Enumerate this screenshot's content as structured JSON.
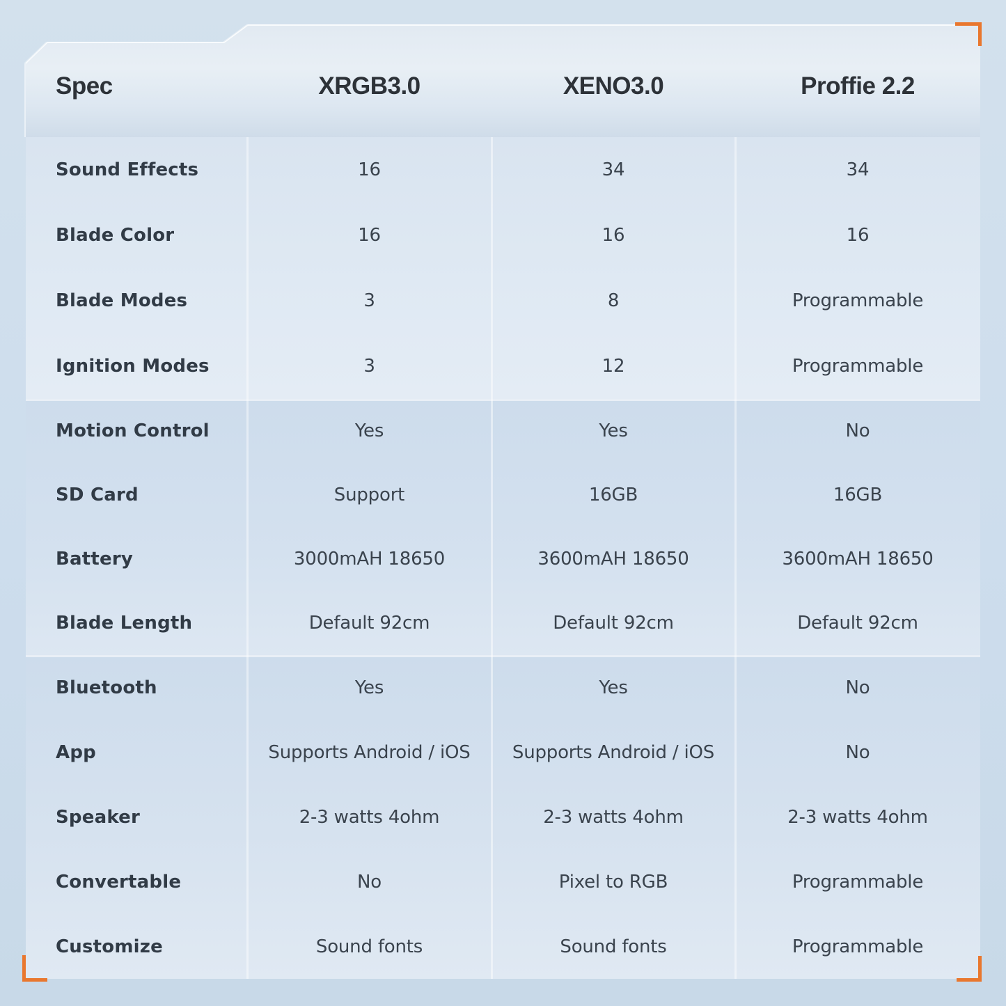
{
  "colors": {
    "accent_orange": "#E9772E",
    "header_text": "#2D3238",
    "body_text": "#3A434D",
    "background": "#CDDDED"
  },
  "chart_data": {
    "type": "table",
    "columns": [
      "Spec",
      "XRGB3.0",
      "XENO3.0",
      "Proffie 2.2"
    ],
    "rows": [
      {
        "label": "Sound Effects",
        "values": [
          "16",
          "34",
          "34"
        ]
      },
      {
        "label": "Blade Color",
        "values": [
          "16",
          "16",
          "16"
        ]
      },
      {
        "label": "Blade Modes",
        "values": [
          "3",
          "8",
          "Programmable"
        ]
      },
      {
        "label": "Ignition Modes",
        "values": [
          "3",
          "12",
          "Programmable"
        ]
      },
      {
        "label": "Motion Control",
        "values": [
          "Yes",
          "Yes",
          "No"
        ]
      },
      {
        "label": "SD Card",
        "values": [
          "Support",
          "16GB",
          "16GB"
        ]
      },
      {
        "label": "Battery",
        "values": [
          "3000mAH 18650",
          "3600mAH 18650",
          "3600mAH 18650"
        ]
      },
      {
        "label": "Blade Length",
        "values": [
          "Default 92cm",
          "Default 92cm",
          "Default 92cm"
        ]
      },
      {
        "label": "Bluetooth",
        "values": [
          "Yes",
          "Yes",
          "No"
        ]
      },
      {
        "label": "App",
        "values": [
          "Supports Android / iOS",
          "Supports Android / iOS",
          "No"
        ]
      },
      {
        "label": "Speaker",
        "values": [
          "2-3 watts 4ohm",
          "2-3 watts 4ohm",
          "2-3 watts 4ohm"
        ]
      },
      {
        "label": "Convertable",
        "values": [
          "No",
          "Pixel to RGB",
          "Programmable"
        ]
      },
      {
        "label": "Customize",
        "values": [
          "Sound fonts",
          "Sound fonts",
          "Programmable"
        ]
      }
    ],
    "layout": {
      "row_groups": [
        4,
        4,
        5
      ],
      "grid": "off",
      "header_style": "folder-tab",
      "corner_brackets": [
        "top-right",
        "bottom-left",
        "bottom-right"
      ]
    }
  }
}
